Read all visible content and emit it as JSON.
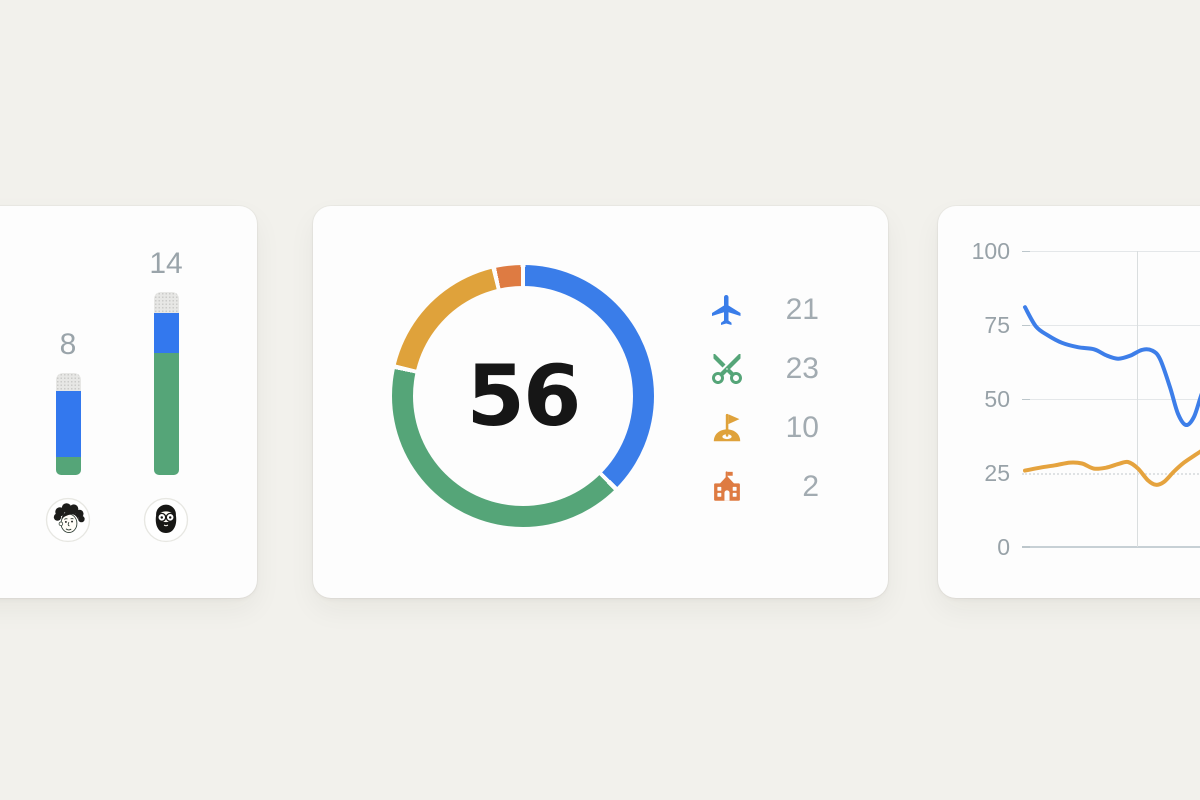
{
  "app": {
    "background": "#f2f1ec",
    "card_background": "#fdfdfd",
    "muted_text": "#9aa4aa"
  },
  "chart_data": [
    {
      "type": "bar",
      "variant": "stacked-vertical-rounded",
      "categories": [
        "person-curly-hair",
        "person-beard-glasses"
      ],
      "labels": [
        "8",
        "14"
      ],
      "totals": [
        8,
        14
      ],
      "series": [
        {
          "name": "remainder",
          "color": "#e7e7e5",
          "values": [
            1.4,
            1.6
          ]
        },
        {
          "name": "blue",
          "color": "#3378ee",
          "values": [
            5.0,
            3.1
          ]
        },
        {
          "name": "green",
          "color": "#55a578",
          "values": [
            1.4,
            9.3
          ]
        }
      ],
      "ylim": [
        0,
        14
      ],
      "grid": false
    },
    {
      "type": "pie",
      "variant": "donut",
      "center_label": "56",
      "total": 56,
      "slices": [
        {
          "label": "flights",
          "icon": "airplane-icon",
          "color": "#3a7de9",
          "value": 21
        },
        {
          "label": "cuts",
          "icon": "scissors-icon",
          "color": "#55a578",
          "value": 23
        },
        {
          "label": "golf",
          "icon": "golf-flag-icon",
          "color": "#dfa23b",
          "value": 10
        },
        {
          "label": "school",
          "icon": "school-icon",
          "color": "#de7b42",
          "value": 2
        }
      ],
      "legend_position": "right"
    },
    {
      "type": "line",
      "ylim": [
        0,
        100
      ],
      "yticks": [
        "100",
        "75",
        "50",
        "25",
        "0"
      ],
      "grid": true,
      "series": [
        {
          "name": "blue",
          "color": "#3d7ee9",
          "points": [
            [
              87,
              81
            ],
            [
              98,
              74.5
            ],
            [
              110,
              71.5
            ],
            [
              124,
              69
            ],
            [
              140,
              67.5
            ],
            [
              156,
              66.8
            ],
            [
              168,
              64.8
            ],
            [
              180,
              63.6
            ],
            [
              192,
              64.6
            ],
            [
              204,
              66.6
            ],
            [
              214,
              66.4
            ],
            [
              222,
              63.5
            ],
            [
              232,
              54
            ],
            [
              240,
              45
            ],
            [
              248,
              41.2
            ],
            [
              256,
              44
            ],
            [
              264,
              52
            ],
            [
              272,
              57.5
            ]
          ]
        },
        {
          "name": "orange",
          "color": "#e5a33e",
          "points": [
            [
              87,
              25.8
            ],
            [
              102,
              26.8
            ],
            [
              117,
              27.6
            ],
            [
              132,
              28.5
            ],
            [
              144,
              28.2
            ],
            [
              156,
              26.5
            ],
            [
              168,
              26.8
            ],
            [
              180,
              28
            ],
            [
              190,
              28.7
            ],
            [
              200,
              26.5
            ],
            [
              210,
              22.5
            ],
            [
              218,
              21
            ],
            [
              226,
              22
            ],
            [
              236,
              25.5
            ],
            [
              246,
              28.5
            ],
            [
              256,
              30.8
            ],
            [
              266,
              33
            ],
            [
              272,
              34
            ]
          ]
        }
      ]
    }
  ]
}
